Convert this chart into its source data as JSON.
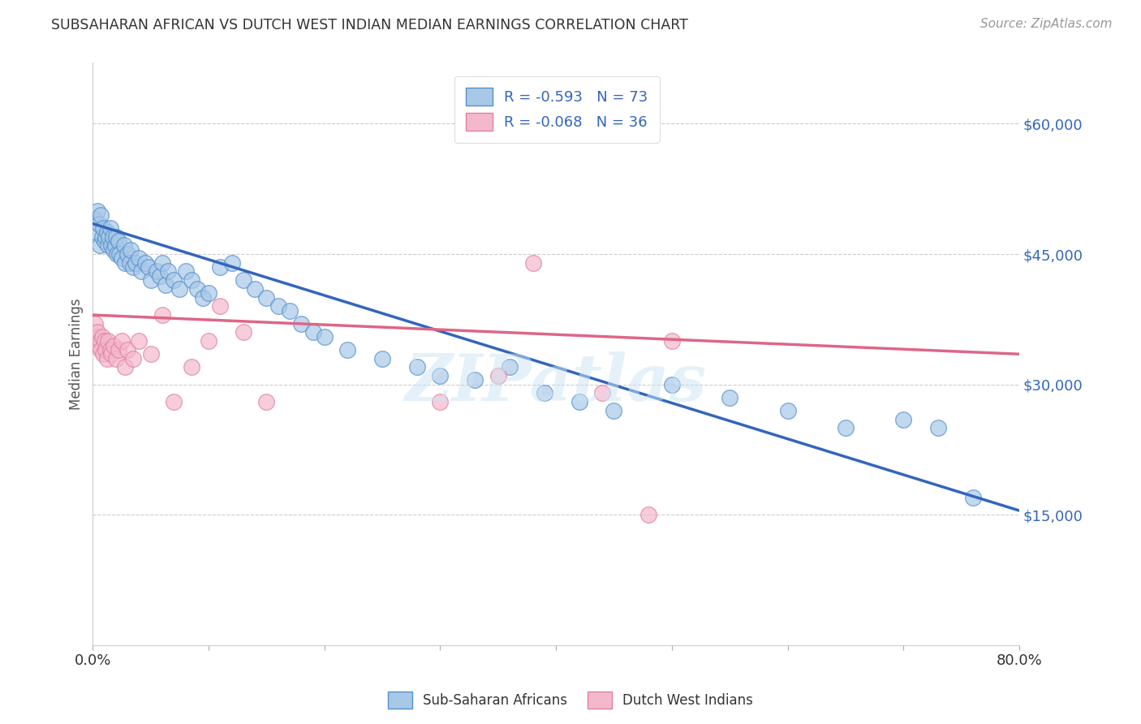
{
  "title": "SUBSAHARAN AFRICAN VS DUTCH WEST INDIAN MEDIAN EARNINGS CORRELATION CHART",
  "source": "Source: ZipAtlas.com",
  "ylabel": "Median Earnings",
  "y_ticks": [
    15000,
    30000,
    45000,
    60000
  ],
  "y_tick_labels": [
    "$15,000",
    "$30,000",
    "$45,000",
    "$60,000"
  ],
  "x_min": 0.0,
  "x_max": 0.8,
  "y_min": 0,
  "y_max": 67000,
  "watermark": "ZIPatlas",
  "blue_color": "#a8c8e8",
  "blue_edge_color": "#5590cc",
  "blue_line_color": "#3366bb",
  "pink_color": "#f4b8cc",
  "pink_edge_color": "#e080a0",
  "pink_line_color": "#dd6688",
  "legend_blue_label": "R = -0.593   N = 73",
  "legend_pink_label": "R = -0.068   N = 36",
  "blue_intercept": 48500,
  "blue_slope": -33000,
  "pink_intercept": 38000,
  "pink_slope": -4500,
  "blue_scatter_x": [
    0.002,
    0.003,
    0.004,
    0.005,
    0.006,
    0.007,
    0.008,
    0.009,
    0.01,
    0.011,
    0.012,
    0.013,
    0.014,
    0.015,
    0.016,
    0.017,
    0.018,
    0.019,
    0.02,
    0.021,
    0.022,
    0.023,
    0.025,
    0.027,
    0.028,
    0.03,
    0.032,
    0.033,
    0.035,
    0.037,
    0.04,
    0.042,
    0.045,
    0.048,
    0.05,
    0.055,
    0.058,
    0.06,
    0.063,
    0.065,
    0.07,
    0.075,
    0.08,
    0.085,
    0.09,
    0.095,
    0.1,
    0.11,
    0.12,
    0.13,
    0.14,
    0.15,
    0.16,
    0.17,
    0.18,
    0.19,
    0.2,
    0.22,
    0.25,
    0.28,
    0.3,
    0.33,
    0.36,
    0.39,
    0.42,
    0.45,
    0.5,
    0.55,
    0.6,
    0.65,
    0.7,
    0.73,
    0.76
  ],
  "blue_scatter_y": [
    49000,
    47500,
    50000,
    48500,
    46000,
    49500,
    47000,
    48000,
    46500,
    47000,
    47500,
    46000,
    47000,
    48000,
    46000,
    47000,
    45500,
    46000,
    47000,
    45000,
    46500,
    45000,
    44500,
    46000,
    44000,
    45000,
    44000,
    45500,
    43500,
    44000,
    44500,
    43000,
    44000,
    43500,
    42000,
    43000,
    42500,
    44000,
    41500,
    43000,
    42000,
    41000,
    43000,
    42000,
    41000,
    40000,
    40500,
    43500,
    44000,
    42000,
    41000,
    40000,
    39000,
    38500,
    37000,
    36000,
    35500,
    34000,
    33000,
    32000,
    31000,
    30500,
    32000,
    29000,
    28000,
    27000,
    30000,
    28500,
    27000,
    25000,
    26000,
    25000,
    17000
  ],
  "pink_scatter_x": [
    0.002,
    0.003,
    0.004,
    0.005,
    0.006,
    0.007,
    0.008,
    0.009,
    0.01,
    0.011,
    0.012,
    0.013,
    0.015,
    0.016,
    0.018,
    0.02,
    0.022,
    0.025,
    0.028,
    0.03,
    0.035,
    0.04,
    0.05,
    0.06,
    0.07,
    0.085,
    0.1,
    0.11,
    0.13,
    0.15,
    0.3,
    0.35,
    0.38,
    0.44,
    0.48,
    0.5
  ],
  "pink_scatter_y": [
    37000,
    35500,
    36000,
    34500,
    35000,
    34000,
    35500,
    33500,
    35000,
    34000,
    33000,
    35000,
    34000,
    33500,
    34500,
    33000,
    34000,
    35000,
    32000,
    34000,
    33000,
    35000,
    33500,
    38000,
    28000,
    32000,
    35000,
    39000,
    36000,
    28000,
    28000,
    31000,
    44000,
    29000,
    15000,
    35000
  ],
  "background_color": "#ffffff",
  "grid_color": "#cccccc"
}
